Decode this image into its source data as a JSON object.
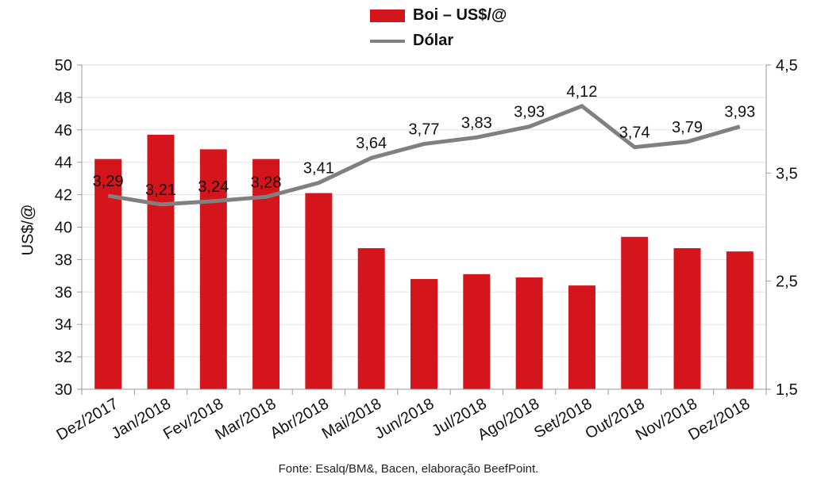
{
  "chart_data": {
    "type": "bar+line",
    "categories": [
      "Dez/2017",
      "Jan/2018",
      "Fev/2018",
      "Mar/2018",
      "Abr/2018",
      "Mai/2018",
      "Jun/2018",
      "Jul/2018",
      "Ago/2018",
      "Set/2018",
      "Out/2018",
      "Nov/2018",
      "Dez/2018"
    ],
    "series": [
      {
        "name": "Boi – US$/@",
        "type": "bar",
        "axis": "left",
        "color": "#d4151b",
        "values": [
          44.2,
          45.7,
          44.8,
          44.2,
          42.1,
          38.7,
          36.8,
          37.1,
          36.9,
          36.4,
          39.4,
          38.7,
          38.5
        ]
      },
      {
        "name": "Dólar",
        "type": "line",
        "axis": "right",
        "color": "#808080",
        "values": [
          3.29,
          3.21,
          3.24,
          3.28,
          3.41,
          3.64,
          3.77,
          3.83,
          3.93,
          4.12,
          3.74,
          3.79,
          3.93
        ],
        "labels": [
          "3,29",
          "3,21",
          "3,24",
          "3,28",
          "3,41",
          "3,64",
          "3,77",
          "3,83",
          "3,93",
          "4,12",
          "3,74",
          "3,79",
          "3,93"
        ]
      }
    ],
    "ylabel": "US$/@",
    "ylim": [
      30,
      50
    ],
    "yticks": [
      30,
      32,
      34,
      36,
      38,
      40,
      42,
      44,
      46,
      48,
      50
    ],
    "y2lim": [
      1.5,
      4.5
    ],
    "y2ticks": [
      1.5,
      2.5,
      3.5,
      4.5
    ],
    "y2tick_labels": [
      "1,5",
      "2,5",
      "3,5",
      "4,5"
    ],
    "grid": true,
    "legend": "top-center"
  },
  "legend": {
    "bar_label": "Boi – US$/@",
    "line_label": "Dólar"
  },
  "source": "Fonte:  Esalq/BM&,  Bacen,  elaboração  BeefPoint."
}
